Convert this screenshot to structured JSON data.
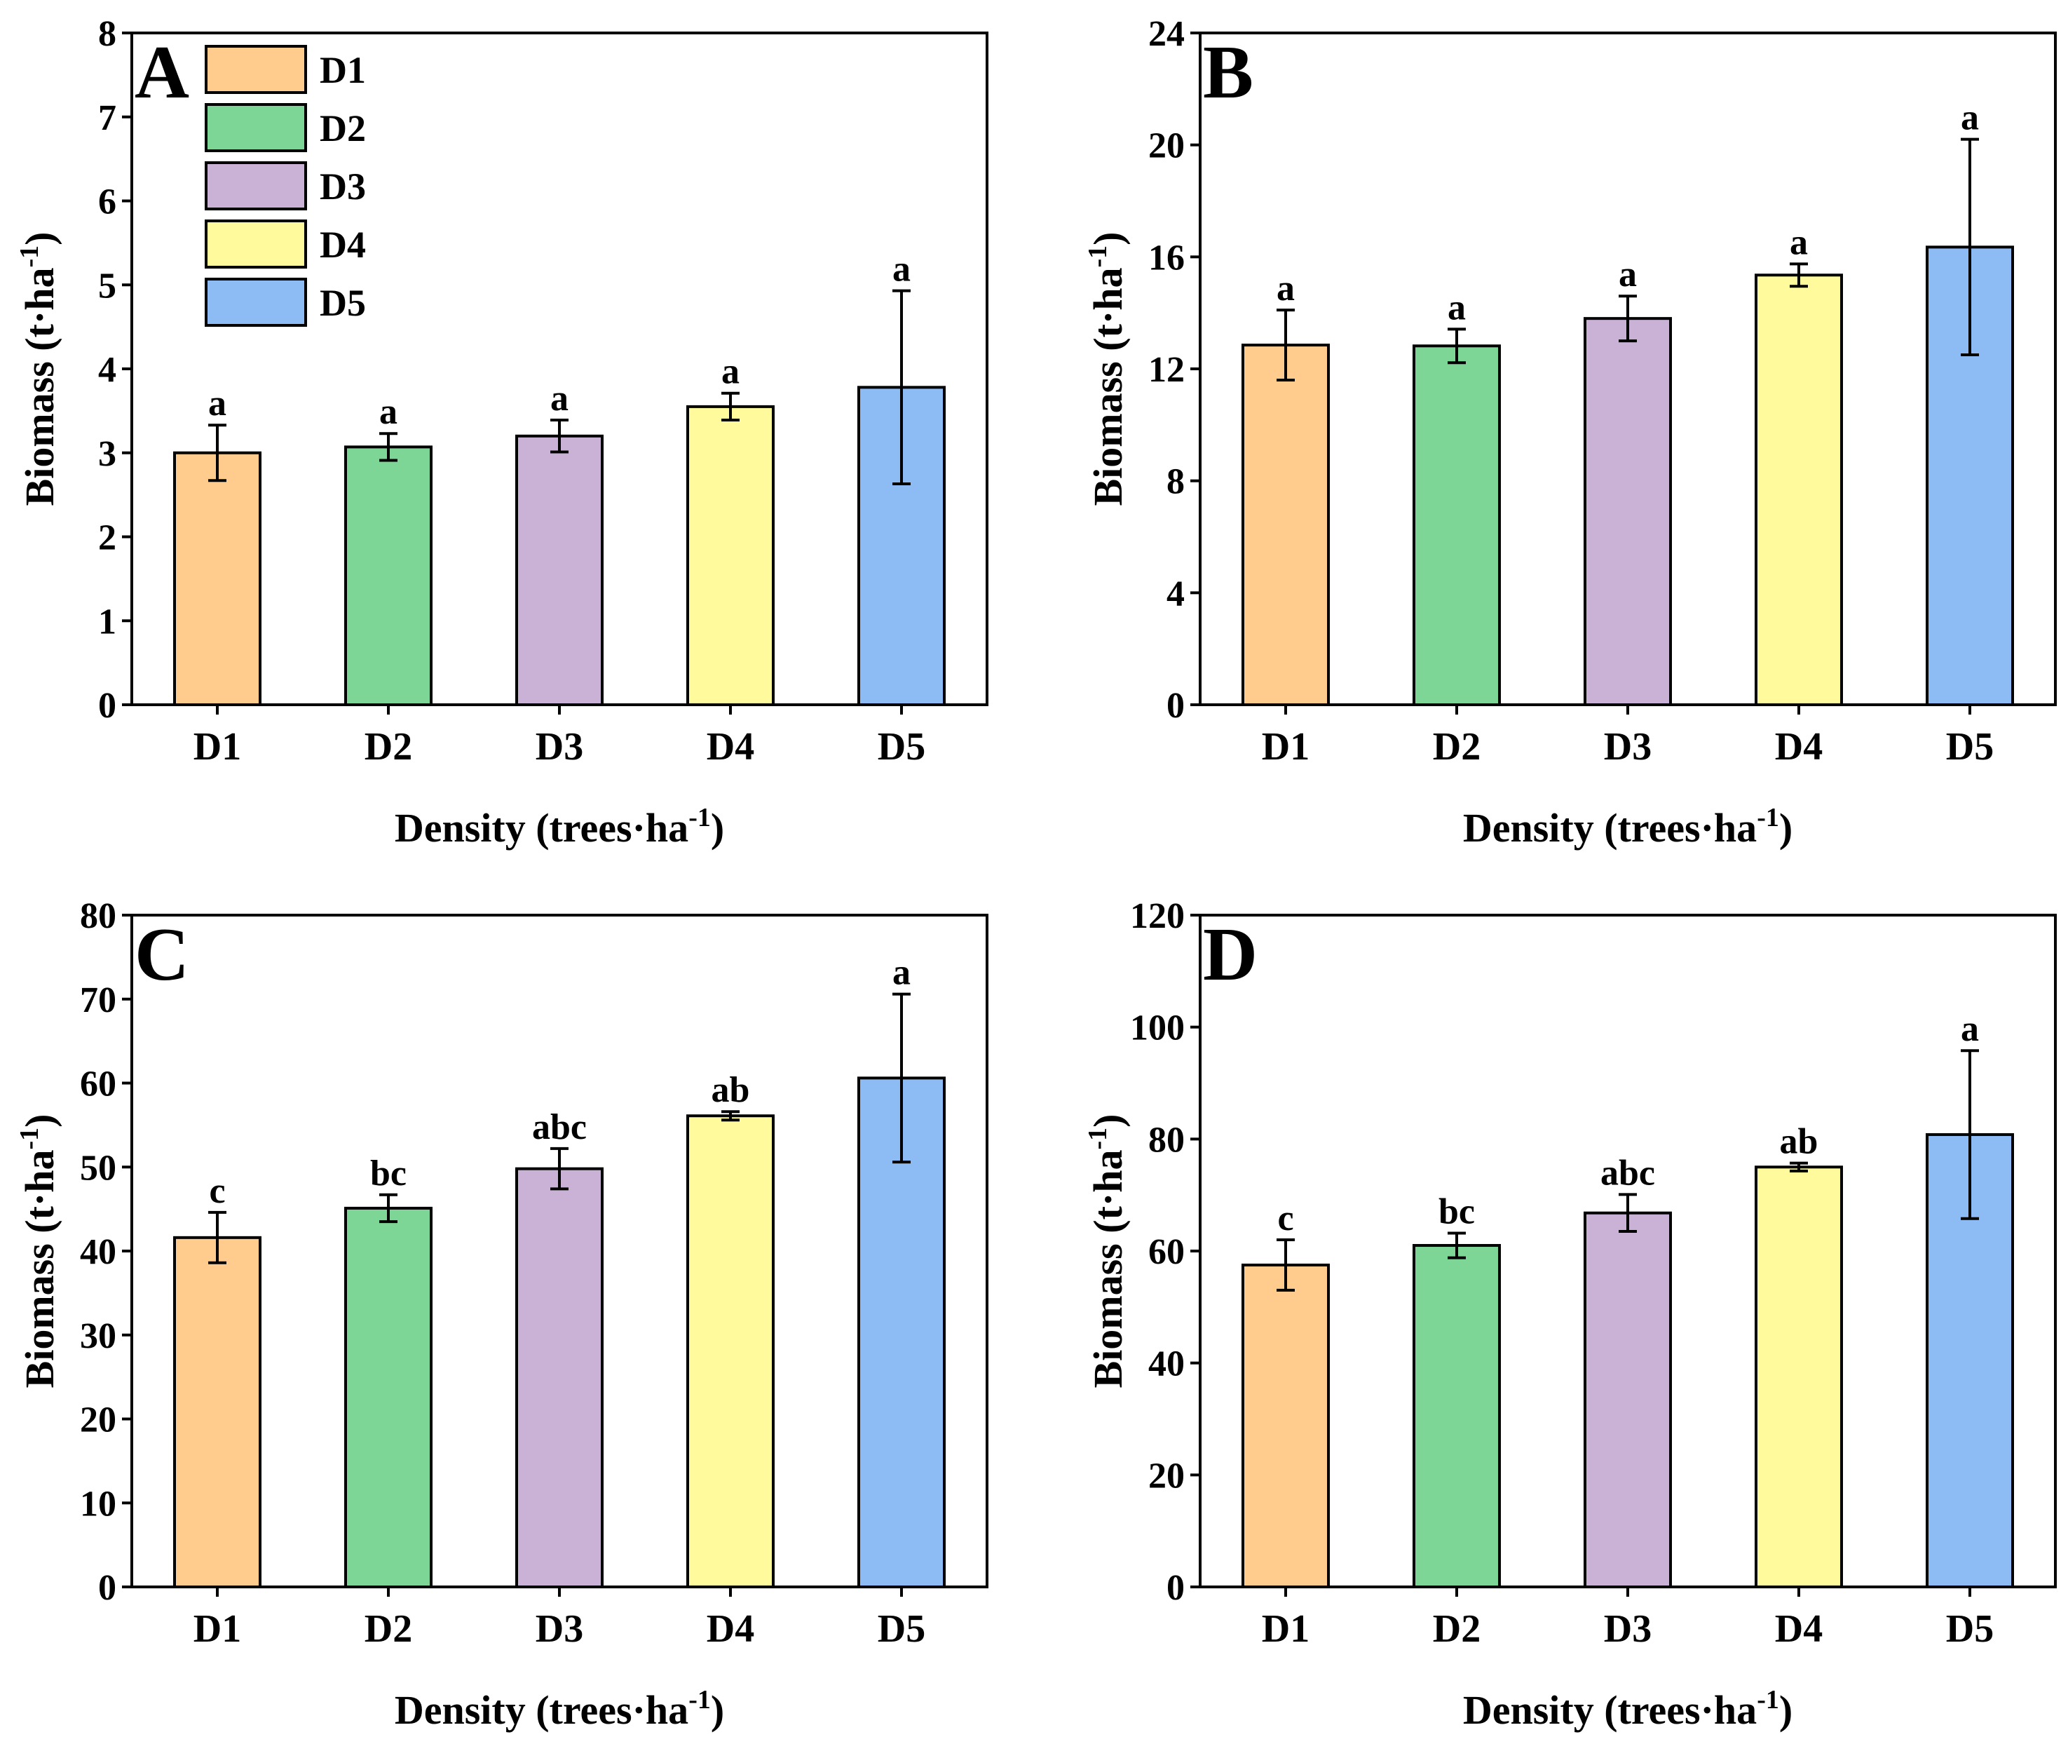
{
  "colors": {
    "D1": "#FFCC8E",
    "D2": "#7ED696",
    "D3": "#CAB2D6",
    "D4": "#FFFB9C",
    "D5": "#8DBCF5"
  },
  "legend": [
    {
      "label": "D1",
      "color_key": "D1"
    },
    {
      "label": "D2",
      "color_key": "D2"
    },
    {
      "label": "D3",
      "color_key": "D3"
    },
    {
      "label": "D4",
      "color_key": "D4"
    },
    {
      "label": "D5",
      "color_key": "D5"
    }
  ],
  "chart_data": [
    {
      "panel": "A",
      "type": "bar",
      "categories": [
        "D1",
        "D2",
        "D3",
        "D4",
        "D5"
      ],
      "values": [
        3.0,
        3.07,
        3.2,
        3.55,
        3.78
      ],
      "errors": [
        0.33,
        0.16,
        0.19,
        0.16,
        1.15
      ],
      "significance": [
        "a",
        "a",
        "a",
        "a",
        "a"
      ],
      "ylim": [
        0,
        8
      ],
      "yticks": [
        0,
        1,
        2,
        3,
        4,
        5,
        6,
        7,
        8
      ],
      "ylabel": "Biomass (t·ha",
      "ylabel_sup": "-1",
      "ylabel_close": ")",
      "xlabel": "Density (trees·ha",
      "xlabel_sup": "-1",
      "xlabel_close": ")"
    },
    {
      "panel": "B",
      "type": "bar",
      "categories": [
        "D1",
        "D2",
        "D3",
        "D4",
        "D5"
      ],
      "values": [
        12.85,
        12.82,
        13.8,
        15.35,
        16.35
      ],
      "errors": [
        1.25,
        0.6,
        0.8,
        0.4,
        3.85
      ],
      "significance": [
        "a",
        "a",
        "a",
        "a",
        "a"
      ],
      "ylim": [
        0,
        24
      ],
      "yticks": [
        0,
        4,
        8,
        12,
        16,
        20,
        24
      ],
      "ylabel": "Biomass (t·ha",
      "ylabel_sup": "-1",
      "ylabel_close": ")",
      "xlabel": "Density (trees·ha",
      "xlabel_sup": "-1",
      "xlabel_close": ")"
    },
    {
      "panel": "C",
      "type": "bar",
      "categories": [
        "D1",
        "D2",
        "D3",
        "D4",
        "D5"
      ],
      "values": [
        41.6,
        45.1,
        49.8,
        56.1,
        60.6
      ],
      "errors": [
        3.0,
        1.6,
        2.4,
        0.5,
        10.0
      ],
      "significance": [
        "c",
        "bc",
        "abc",
        "ab",
        "a"
      ],
      "ylim": [
        0,
        80
      ],
      "yticks": [
        0,
        10,
        20,
        30,
        40,
        50,
        60,
        70,
        80
      ],
      "ylabel": "Biomass (t·ha",
      "ylabel_sup": "-1",
      "ylabel_close": ")",
      "xlabel": "Density (trees·ha",
      "xlabel_sup": "-1",
      "xlabel_close": ")"
    },
    {
      "panel": "D",
      "type": "bar",
      "categories": [
        "D1",
        "D2",
        "D3",
        "D4",
        "D5"
      ],
      "values": [
        57.5,
        61.0,
        66.8,
        75.0,
        80.8
      ],
      "errors": [
        4.5,
        2.2,
        3.3,
        0.7,
        15.0
      ],
      "significance": [
        "c",
        "bc",
        "abc",
        "ab",
        "a"
      ],
      "ylim": [
        0,
        120
      ],
      "yticks": [
        0,
        20,
        40,
        60,
        80,
        100,
        120
      ],
      "ylabel": "Biomass (t·ha",
      "ylabel_sup": "-1",
      "ylabel_close": ")",
      "xlabel": "Density (trees·ha",
      "xlabel_sup": "-1",
      "xlabel_close": ")"
    }
  ]
}
